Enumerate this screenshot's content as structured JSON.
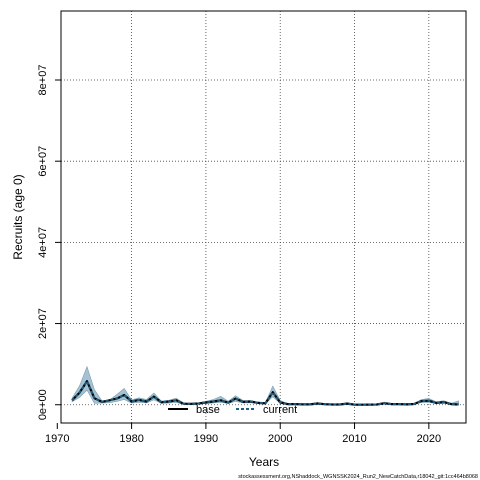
{
  "chart_data": {
    "type": "area",
    "xlabel": "Years",
    "ylabel": "Recruits (age 0)",
    "xlim": [
      1970.5,
      2025
    ],
    "ylim": [
      -4500000,
      97000000
    ],
    "x_ticks": [
      1970,
      1980,
      1990,
      2000,
      2010,
      2020
    ],
    "y_ticks": [
      0,
      20000000,
      40000000,
      60000000,
      80000000
    ],
    "y_tick_labels": [
      "0e+00",
      "2e+07",
      "4e+07",
      "6e+07",
      "8e+07"
    ],
    "grid": true,
    "legend_position": "bottom-center",
    "footer": "stockassessment.org,NShaddock_WGNSSK2024_Run2_NewCatchData,r18042_git:1cc464b8068",
    "colors": {
      "band": "#a5c2d3",
      "band_edge": "#7e9eb0",
      "current": "#1f5f82",
      "base": "#000000"
    },
    "x": [
      1972,
      1973,
      1974,
      1975,
      1976,
      1977,
      1978,
      1979,
      1980,
      1981,
      1982,
      1983,
      1984,
      1985,
      1986,
      1987,
      1988,
      1989,
      1990,
      1991,
      1992,
      1993,
      1994,
      1995,
      1996,
      1997,
      1998,
      1999,
      2000,
      2001,
      2002,
      2003,
      2004,
      2005,
      2006,
      2007,
      2008,
      2009,
      2010,
      2011,
      2012,
      2013,
      2014,
      2015,
      2016,
      2017,
      2018,
      2019,
      2020,
      2021,
      2022,
      2023,
      2024
    ],
    "series": [
      {
        "name": "base",
        "values": [
          1100000,
          3000000,
          5800000,
          1600000,
          700000,
          1100000,
          1500000,
          2400000,
          800000,
          1200000,
          800000,
          2000000,
          600000,
          800000,
          1100000,
          250000,
          200000,
          300000,
          550000,
          800000,
          1100000,
          500000,
          1500000,
          700000,
          800000,
          450000,
          350000,
          3100000,
          550000,
          150000,
          150000,
          80000,
          80000,
          300000,
          120000,
          60000,
          60000,
          280000,
          25000,
          20000,
          30000,
          60000,
          350000,
          150000,
          150000,
          80000,
          180000,
          900000,
          1000000,
          450000,
          650000,
          150000,
          50000
        ]
      },
      {
        "name": "current",
        "values": [
          1100000,
          3000000,
          5800000,
          1600000,
          700000,
          1100000,
          1500000,
          2400000,
          800000,
          1200000,
          800000,
          2000000,
          600000,
          800000,
          1100000,
          250000,
          200000,
          300000,
          550000,
          800000,
          1100000,
          500000,
          1500000,
          700000,
          800000,
          450000,
          350000,
          3100000,
          550000,
          150000,
          150000,
          80000,
          80000,
          300000,
          120000,
          60000,
          60000,
          280000,
          25000,
          20000,
          30000,
          60000,
          350000,
          150000,
          150000,
          80000,
          180000,
          900000,
          1000000,
          450000,
          650000,
          150000,
          50000
        ]
      }
    ],
    "lower": [
      700000,
      1800000,
      3600000,
      350000,
      400000,
      500000,
      800000,
      1300000,
      400000,
      600000,
      450000,
      1200000,
      350000,
      400000,
      600000,
      100000,
      100000,
      150000,
      300000,
      450000,
      600000,
      300000,
      800000,
      450000,
      500000,
      250000,
      200000,
      2000000,
      300000,
      80000,
      90000,
      40000,
      40000,
      150000,
      60000,
      30000,
      30000,
      140000,
      10000,
      10000,
      15000,
      30000,
      200000,
      80000,
      80000,
      40000,
      90000,
      550000,
      600000,
      250000,
      350000,
      60000,
      0
    ],
    "upper": [
      1600000,
      4700000,
      9400000,
      3700000,
      1000000,
      1100000,
      2500000,
      4000000,
      1200000,
      1700000,
      1300000,
      2900000,
      900000,
      1100000,
      1600000,
      400000,
      350000,
      450000,
      850000,
      1300000,
      2050000,
      850000,
      2200000,
      1050000,
      1050000,
      650000,
      550000,
      4600000,
      1050000,
      250000,
      250000,
      130000,
      130000,
      550000,
      200000,
      100000,
      100000,
      500000,
      50000,
      40000,
      50000,
      100000,
      650000,
      250000,
      250000,
      150000,
      300000,
      1300000,
      1550000,
      700000,
      1000000,
      350000,
      950000
    ]
  },
  "legend": {
    "base_label": "base",
    "current_label": "current"
  }
}
